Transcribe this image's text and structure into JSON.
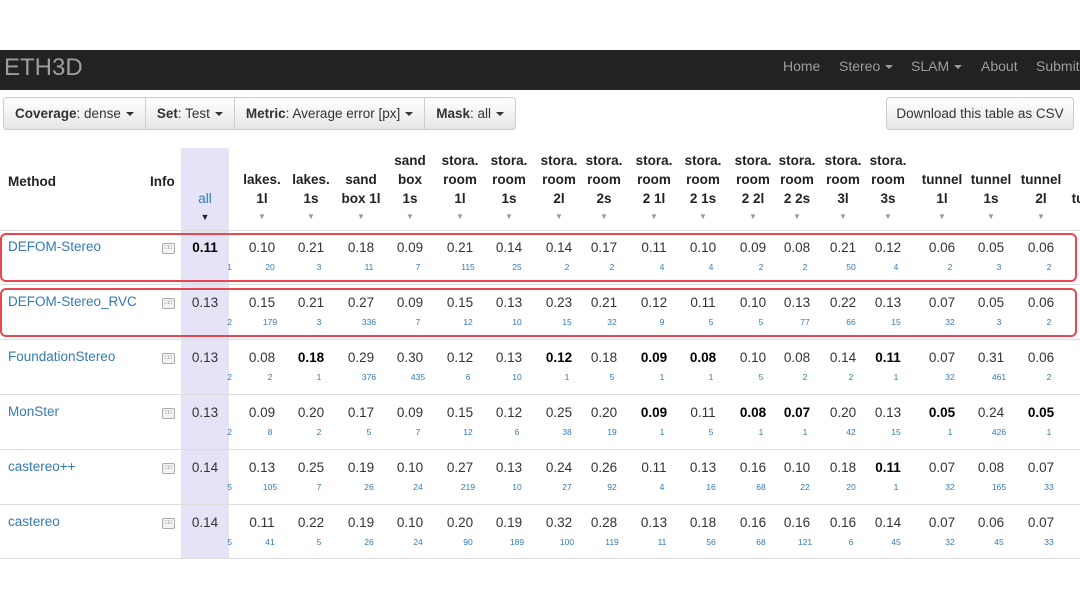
{
  "navbar": {
    "brand": "ETH3D",
    "items": [
      {
        "label": "Home",
        "dropdown": false
      },
      {
        "label": "Stereo",
        "dropdown": true
      },
      {
        "label": "SLAM",
        "dropdown": true
      },
      {
        "label": "About",
        "dropdown": false
      },
      {
        "label": "Submit",
        "dropdown": false
      }
    ]
  },
  "filters": {
    "coverage": {
      "name": "Coverage",
      "value": "dense"
    },
    "set": {
      "name": "Set",
      "value": "Test"
    },
    "metric": {
      "name": "Metric",
      "value": "Average error [px]"
    },
    "mask": {
      "name": "Mask",
      "value": "all"
    }
  },
  "csv_button": "Download this table as CSV",
  "table": {
    "method_header": "Method",
    "info_header": "Info",
    "columns": [
      {
        "lines": [
          "all"
        ]
      },
      {
        "lines": [
          "lakes.",
          "1l"
        ]
      },
      {
        "lines": [
          "lakes.",
          "1s"
        ]
      },
      {
        "lines": [
          "sand",
          "box 1l"
        ]
      },
      {
        "lines": [
          "sand",
          "box",
          "1s"
        ]
      },
      {
        "lines": [
          "stora.",
          "room",
          "1l"
        ]
      },
      {
        "lines": [
          "stora.",
          "room",
          "1s"
        ]
      },
      {
        "lines": [
          "stora.",
          "room",
          "2l"
        ]
      },
      {
        "lines": [
          "stora.",
          "room",
          "2s"
        ]
      },
      {
        "lines": [
          "stora.",
          "room",
          "2 1l"
        ]
      },
      {
        "lines": [
          "stora.",
          "room",
          "2 1s"
        ]
      },
      {
        "lines": [
          "stora.",
          "room",
          "2 2l"
        ]
      },
      {
        "lines": [
          "stora.",
          "room",
          "2 2s"
        ]
      },
      {
        "lines": [
          "stora.",
          "room",
          "3l"
        ]
      },
      {
        "lines": [
          "stora.",
          "room",
          "3s"
        ]
      },
      {
        "lines": [
          "tunnel",
          "1l"
        ]
      },
      {
        "lines": [
          "tunnel",
          "1s"
        ]
      },
      {
        "lines": [
          "tunnel",
          "2l"
        ]
      },
      {
        "lines": [
          "tu"
        ]
      }
    ],
    "rows": [
      {
        "method": "DEFOM-Stereo",
        "highlighted": true,
        "values": [
          "0.11",
          "0.10",
          "0.21",
          "0.18",
          "0.09",
          "0.21",
          "0.14",
          "0.14",
          "0.17",
          "0.11",
          "0.10",
          "0.09",
          "0.08",
          "0.21",
          "0.12",
          "0.06",
          "0.05",
          "0.06"
        ],
        "ranks": [
          "1",
          "20",
          "3",
          "11",
          "7",
          "115",
          "25",
          "2",
          "2",
          "4",
          "4",
          "2",
          "2",
          "50",
          "4",
          "2",
          "3",
          "2"
        ],
        "bold": [
          0
        ]
      },
      {
        "method": "DEFOM-Stereo_RVC",
        "highlighted": true,
        "values": [
          "0.13",
          "0.15",
          "0.21",
          "0.27",
          "0.09",
          "0.15",
          "0.13",
          "0.23",
          "0.21",
          "0.12",
          "0.11",
          "0.10",
          "0.13",
          "0.22",
          "0.13",
          "0.07",
          "0.05",
          "0.06"
        ],
        "ranks": [
          "2",
          "179",
          "3",
          "336",
          "7",
          "12",
          "10",
          "15",
          "32",
          "9",
          "5",
          "5",
          "77",
          "66",
          "15",
          "32",
          "3",
          "2"
        ],
        "bold": []
      },
      {
        "method": "FoundationStereo",
        "highlighted": false,
        "values": [
          "0.13",
          "0.08",
          "0.18",
          "0.29",
          "0.30",
          "0.12",
          "0.13",
          "0.12",
          "0.18",
          "0.09",
          "0.08",
          "0.10",
          "0.08",
          "0.14",
          "0.11",
          "0.07",
          "0.31",
          "0.06"
        ],
        "ranks": [
          "2",
          "2",
          "1",
          "376",
          "435",
          "6",
          "10",
          "1",
          "5",
          "1",
          "1",
          "5",
          "2",
          "2",
          "1",
          "32",
          "461",
          "2"
        ],
        "bold": [
          2,
          7,
          9,
          10,
          14
        ]
      },
      {
        "method": "MonSter",
        "highlighted": false,
        "values": [
          "0.13",
          "0.09",
          "0.20",
          "0.17",
          "0.09",
          "0.15",
          "0.12",
          "0.25",
          "0.20",
          "0.09",
          "0.11",
          "0.08",
          "0.07",
          "0.20",
          "0.13",
          "0.05",
          "0.24",
          "0.05"
        ],
        "ranks": [
          "2",
          "8",
          "2",
          "5",
          "7",
          "12",
          "6",
          "38",
          "19",
          "1",
          "5",
          "1",
          "1",
          "42",
          "15",
          "1",
          "426",
          "1"
        ],
        "bold": [
          9,
          11,
          12,
          15,
          17
        ]
      },
      {
        "method": "castereo++",
        "highlighted": false,
        "values": [
          "0.14",
          "0.13",
          "0.25",
          "0.19",
          "0.10",
          "0.27",
          "0.13",
          "0.24",
          "0.26",
          "0.11",
          "0.13",
          "0.16",
          "0.10",
          "0.18",
          "0.11",
          "0.07",
          "0.08",
          "0.07"
        ],
        "ranks": [
          "5",
          "105",
          "7",
          "26",
          "24",
          "219",
          "10",
          "27",
          "92",
          "4",
          "16",
          "68",
          "22",
          "20",
          "1",
          "32",
          "165",
          "33"
        ],
        "bold": [
          14
        ]
      },
      {
        "method": "castereo",
        "highlighted": false,
        "values": [
          "0.14",
          "0.11",
          "0.22",
          "0.19",
          "0.10",
          "0.20",
          "0.19",
          "0.32",
          "0.28",
          "0.13",
          "0.18",
          "0.16",
          "0.16",
          "0.16",
          "0.14",
          "0.07",
          "0.06",
          "0.07"
        ],
        "ranks": [
          "5",
          "41",
          "5",
          "26",
          "24",
          "90",
          "189",
          "100",
          "119",
          "11",
          "56",
          "68",
          "121",
          "6",
          "45",
          "32",
          "45",
          "33"
        ],
        "bold": []
      }
    ]
  },
  "colors": {
    "link": "#337ab7",
    "navbar": "#222222",
    "highlight_border": "#e8474f",
    "all_column": "#e4e4f6"
  }
}
